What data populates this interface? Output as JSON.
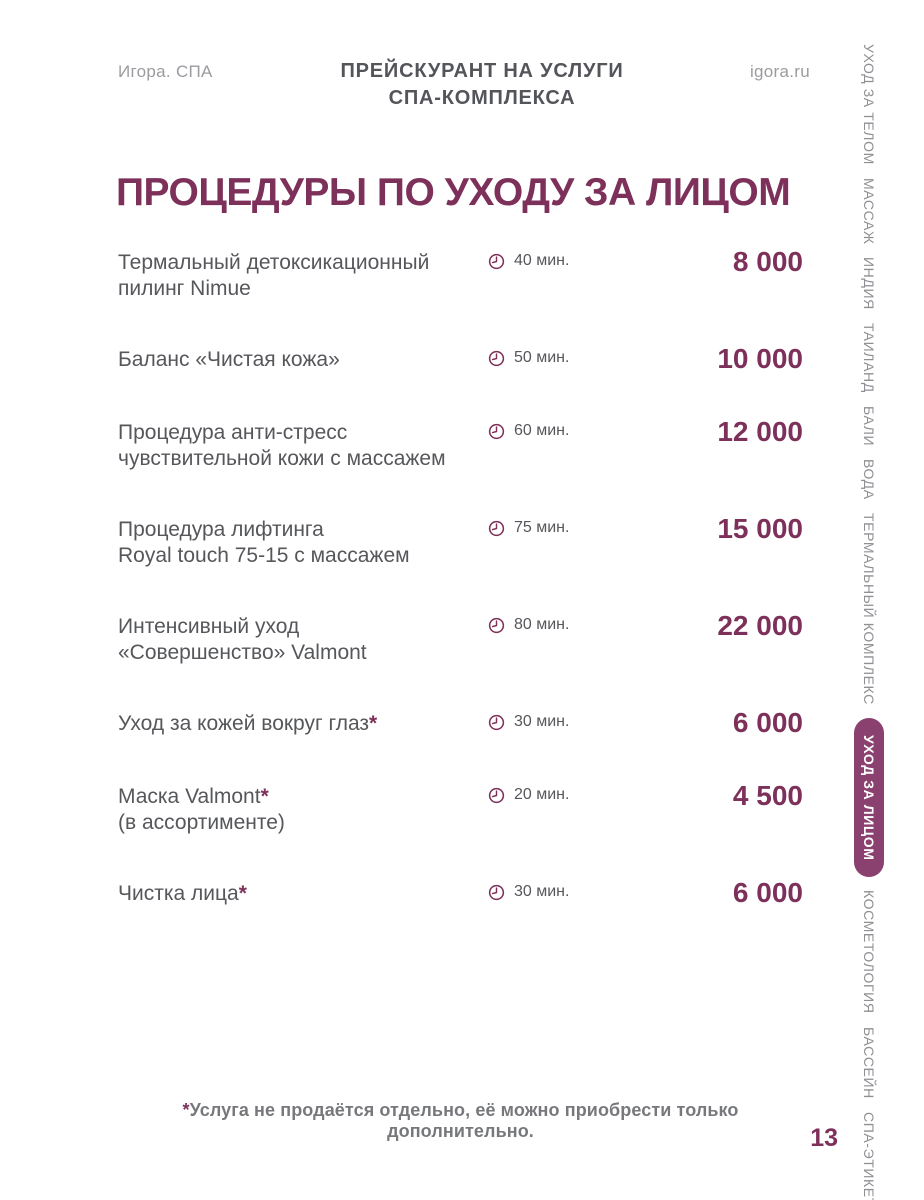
{
  "header": {
    "brand": "Игора. СПА",
    "doc_title_line1": "ПРЕЙСКУРАНТ НА УСЛУГИ",
    "doc_title_line2": "СПА-КОМПЛЕКСА",
    "website": "igora.ru"
  },
  "section_title": "ПРОЦЕДУРЫ ПО УХОДУ ЗА ЛИЦОМ",
  "services": [
    {
      "lines": [
        "Термальный детоксикационный",
        "пилинг Nimue"
      ],
      "asterisk": "",
      "duration": "40 мин.",
      "price": "8 000"
    },
    {
      "lines": [
        "Баланс «Чистая кожа»"
      ],
      "asterisk": "",
      "duration": "50 мин.",
      "price": "10 000"
    },
    {
      "lines": [
        "Процедура анти-стресс",
        "чувствительной кожи с массажем"
      ],
      "asterisk": "",
      "duration": "60 мин.",
      "price": "12 000"
    },
    {
      "lines": [
        "Процедура лифтинга",
        "Royal touch 75-15 с массажем"
      ],
      "asterisk": "",
      "duration": "75 мин.",
      "price": "15 000"
    },
    {
      "lines": [
        "Интенсивный уход",
        "«Совершенство» Valmont"
      ],
      "asterisk": "",
      "duration": "80 мин.",
      "price": "22 000"
    },
    {
      "lines": [
        "Уход за кожей вокруг глаз"
      ],
      "asterisk": "*",
      "duration": "30 мин.",
      "price": "6 000"
    },
    {
      "lines": [
        "Маска Valmont",
        "(в ассортименте)"
      ],
      "asterisk": "*",
      "duration": "20 мин.",
      "price": "4 500"
    },
    {
      "lines": [
        "Чистка лица"
      ],
      "asterisk": "*",
      "duration": "30 мин.",
      "price": "6 000"
    }
  ],
  "duration_icon": "clock-icon",
  "footnote": {
    "marker": "*",
    "text": "Услуга не продаётся отдельно, её можно приобрести только дополнительно."
  },
  "page_number": "13",
  "sidebar": {
    "items": [
      {
        "label": "УХОД ЗА ТЕЛОМ",
        "active": false
      },
      {
        "label": "МАССАЖ",
        "active": false
      },
      {
        "label": "ИНДИЯ",
        "active": false
      },
      {
        "label": "ТАИЛАНД",
        "active": false
      },
      {
        "label": "БАЛИ",
        "active": false
      },
      {
        "label": "ВОДА",
        "active": false
      },
      {
        "label": "ТЕРМАЛЬНЫЙ КОМПЛЕКС",
        "active": false
      },
      {
        "label": "УХОД ЗА ЛИЦОМ",
        "active": true
      },
      {
        "label": "КОСМЕТОЛОГИЯ",
        "active": false
      },
      {
        "label": "БАССЕЙН",
        "active": false
      },
      {
        "label": "СПА-ЭТИКЕТ",
        "active": false
      }
    ]
  },
  "colors": {
    "accent": "#7D3059",
    "active_tab_bg": "#8B4170",
    "text_gray": "#56575B",
    "muted_gray": "#9B9CA0",
    "sidebar_gray": "#8F9094"
  }
}
